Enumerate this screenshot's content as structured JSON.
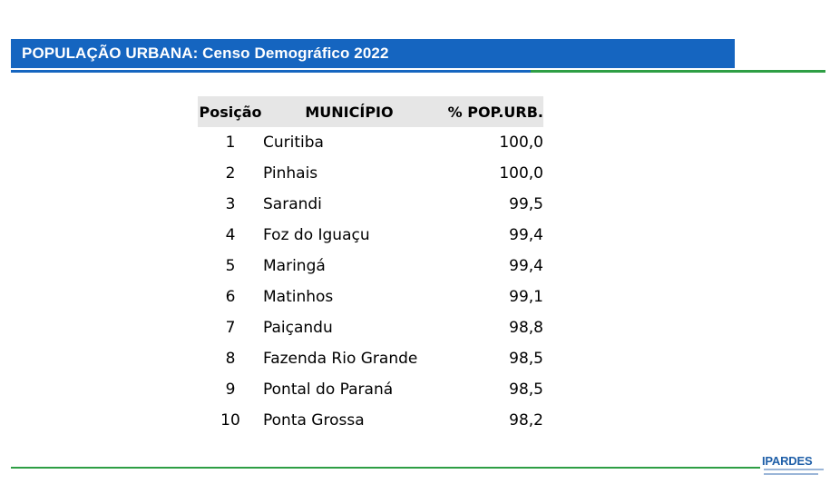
{
  "header": {
    "title": "POPULAÇÃO URBANA: Censo Demográfico 2022"
  },
  "table": {
    "columns": [
      "Posição",
      "MUNICÍPIO",
      "% POP.URB."
    ],
    "rows": [
      {
        "pos": "1",
        "municipio": "Curitiba",
        "pct": "100,0"
      },
      {
        "pos": "2",
        "municipio": "Pinhais",
        "pct": "100,0"
      },
      {
        "pos": "3",
        "municipio": "Sarandi",
        "pct": "99,5"
      },
      {
        "pos": "4",
        "municipio": "Foz do Iguaçu",
        "pct": "99,4"
      },
      {
        "pos": "5",
        "municipio": "Maringá",
        "pct": "99,4"
      },
      {
        "pos": "6",
        "municipio": "Matinhos",
        "pct": "99,1"
      },
      {
        "pos": "7",
        "municipio": "Paiçandu",
        "pct": "98,8"
      },
      {
        "pos": "8",
        "municipio": "Fazenda Rio Grande",
        "pct": "98,5"
      },
      {
        "pos": "9",
        "municipio": "Pontal do Paraná",
        "pct": "98,5"
      },
      {
        "pos": "10",
        "municipio": "Ponta Grossa",
        "pct": "98,2"
      }
    ]
  },
  "footer": {
    "logo_text": "IPARDES"
  },
  "colors": {
    "title_bar": "#1565c0",
    "accent_green": "#2e9e44",
    "header_row": "#e6e6e6"
  }
}
